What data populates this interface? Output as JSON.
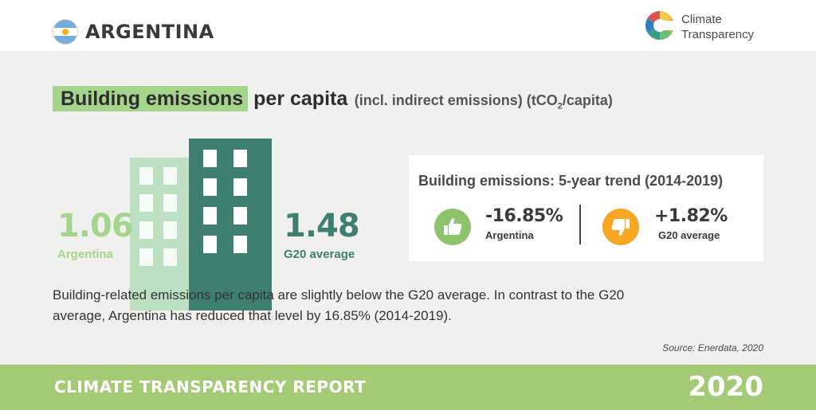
{
  "header": {
    "country": "ARGENTINA",
    "flag_icon": "argentina-flag-icon",
    "logo_line1": "Climate",
    "logo_line2": "Transparency"
  },
  "title": {
    "highlight": "Building emissions",
    "rest": " per capita",
    "unit_prefix": "(incl. indirect emissions) (tCO",
    "unit_sub": "2",
    "unit_suffix": "/capita)"
  },
  "comparison": {
    "argentina_value": "1.06",
    "argentina_label": "Argentina",
    "g20_value": "1.48",
    "g20_label": "G20 average",
    "colors": {
      "argentina": "#a5d58d",
      "g20": "#3e7f72"
    }
  },
  "trend": {
    "title": "Building emissions: 5-year trend (2014-2019)",
    "argentina_value": "-16.85%",
    "argentina_label": "Argentina",
    "argentina_icon": "thumbs-up-icon",
    "g20_value": "+1.82%",
    "g20_label": "G20 average",
    "g20_icon": "thumbs-down-icon"
  },
  "description": "Building-related emissions per capita are slightly below the G20 average. In contrast to the G20 average, Argentina has reduced that level by 16.85% (2014-2019).",
  "source": "Source: Enerdata, 2020",
  "footer": {
    "title": "CLIMATE TRANSPARENCY REPORT",
    "year": "2020"
  }
}
